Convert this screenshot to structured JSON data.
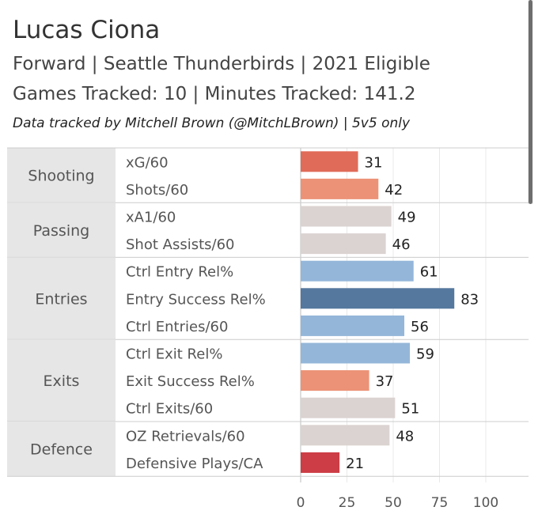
{
  "header": {
    "title": "Lucas Ciona",
    "subtitle_line1": "Forward | Seattle Thunderbirds | 2021 Eligible",
    "subtitle_line2": "Games Tracked: 10 | Minutes Tracked: 141.2",
    "credit": "Data tracked by Mitchell Brown (@MitchLBrown) | 5v5 only"
  },
  "colors": {
    "group_bg": "#e6e6e6",
    "divider": "#cccccc",
    "gridline": "#e9e9e9",
    "dark_red": "#cc3d45",
    "red": "#e06b58",
    "salmon": "#ec9276",
    "neutral": "#dbd3d1",
    "light_blue": "#94b6d9",
    "dark_blue": "#55789e"
  },
  "chart_data": {
    "type": "bar",
    "orientation": "horizontal",
    "x_ticks": [
      0,
      25,
      50,
      75,
      100
    ],
    "xlim": [
      0,
      100
    ],
    "grid": true,
    "groups": [
      {
        "name": "Shooting",
        "metrics": [
          {
            "label": "xG/60",
            "value": 31,
            "color": "#e06b58"
          },
          {
            "label": "Shots/60",
            "value": 42,
            "color": "#ec9276"
          }
        ]
      },
      {
        "name": "Passing",
        "metrics": [
          {
            "label": "xA1/60",
            "value": 49,
            "color": "#dbd3d1"
          },
          {
            "label": "Shot Assists/60",
            "value": 46,
            "color": "#dbd3d1"
          }
        ]
      },
      {
        "name": "Entries",
        "metrics": [
          {
            "label": "Ctrl Entry Rel%",
            "value": 61,
            "color": "#94b6d9"
          },
          {
            "label": "Entry Success Rel%",
            "value": 83,
            "color": "#55789e"
          },
          {
            "label": "Ctrl Entries/60",
            "value": 56,
            "color": "#94b6d9"
          }
        ]
      },
      {
        "name": "Exits",
        "metrics": [
          {
            "label": "Ctrl Exit Rel%",
            "value": 59,
            "color": "#94b6d9"
          },
          {
            "label": "Exit Success Rel%",
            "value": 37,
            "color": "#ec9276"
          },
          {
            "label": "Ctrl Exits/60",
            "value": 51,
            "color": "#dbd3d1"
          }
        ]
      },
      {
        "name": "Defence",
        "metrics": [
          {
            "label": "OZ Retrievals/60",
            "value": 48,
            "color": "#dbd3d1"
          },
          {
            "label": "Defensive Plays/CA",
            "value": 21,
            "color": "#cc3d45"
          }
        ]
      }
    ]
  }
}
